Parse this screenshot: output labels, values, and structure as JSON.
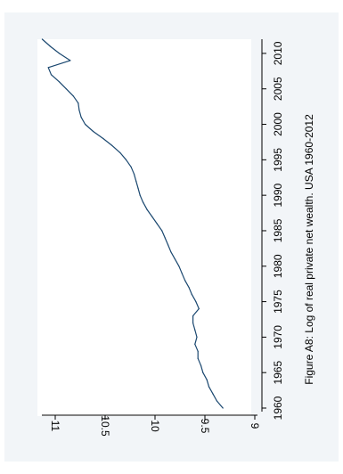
{
  "chart_data": {
    "type": "line",
    "caption": "Figure A8: Log of real private net wealth. USA 1960-2012",
    "xlabel": "",
    "ylabel": "",
    "x_ticks": [
      1960,
      1965,
      1970,
      1975,
      1980,
      1985,
      1990,
      1995,
      2000,
      2005,
      2010
    ],
    "y_ticks": [
      9,
      9.5,
      10,
      10.5,
      11
    ],
    "y_tick_labels": [
      "9",
      "9.5",
      "10",
      "10.5",
      "11"
    ],
    "xlim": [
      1960,
      2012
    ],
    "ylim": [
      9,
      11
    ],
    "grid": false,
    "orientation": "rotated 90° clockwise",
    "line_color": "#1a476f",
    "series": [
      {
        "x": [
          1960,
          1961,
          1962,
          1963,
          1964,
          1965,
          1966,
          1967,
          1968,
          1969,
          1970,
          1971,
          1972,
          1973,
          1974,
          1975,
          1976,
          1977,
          1978,
          1979,
          1980,
          1981,
          1982,
          1983,
          1984,
          1985,
          1986,
          1987,
          1988,
          1989,
          1990,
          1991,
          1992,
          1993,
          1994,
          1995,
          1996,
          1997,
          1998,
          1999,
          2000,
          2001,
          2002,
          2003,
          2004,
          2005,
          2006,
          2007,
          2008,
          2009,
          2010,
          2011,
          2012
        ],
        "values": [
          9.32,
          9.38,
          9.42,
          9.46,
          9.48,
          9.52,
          9.54,
          9.57,
          9.57,
          9.6,
          9.58,
          9.6,
          9.62,
          9.62,
          9.56,
          9.59,
          9.63,
          9.66,
          9.7,
          9.73,
          9.76,
          9.8,
          9.84,
          9.87,
          9.9,
          9.93,
          9.98,
          10.03,
          10.08,
          10.12,
          10.15,
          10.17,
          10.19,
          10.21,
          10.24,
          10.29,
          10.35,
          10.43,
          10.52,
          10.62,
          10.7,
          10.74,
          10.76,
          10.77,
          10.82,
          10.89,
          10.96,
          11.04,
          11.07,
          10.85,
          10.96,
          11.05,
          11.13
        ]
      }
    ]
  }
}
